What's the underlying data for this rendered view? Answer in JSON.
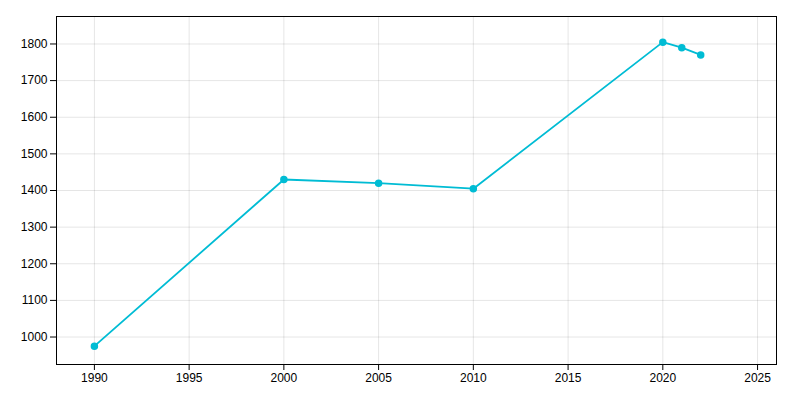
{
  "chart_data": {
    "type": "line",
    "x": [
      1990,
      2000,
      2005,
      2010,
      2020,
      2021,
      2022
    ],
    "values": [
      975,
      1430,
      1420,
      1405,
      1805,
      1790,
      1770
    ],
    "color": "#00BCD4",
    "marker": "circle",
    "xlim": [
      1988,
      2026
    ],
    "ylim": [
      925,
      1875
    ],
    "xticks": [
      1990,
      1995,
      2000,
      2005,
      2010,
      2015,
      2020,
      2025
    ],
    "yticks": [
      1000,
      1100,
      1200,
      1300,
      1400,
      1500,
      1600,
      1700,
      1800
    ],
    "grid": true
  }
}
